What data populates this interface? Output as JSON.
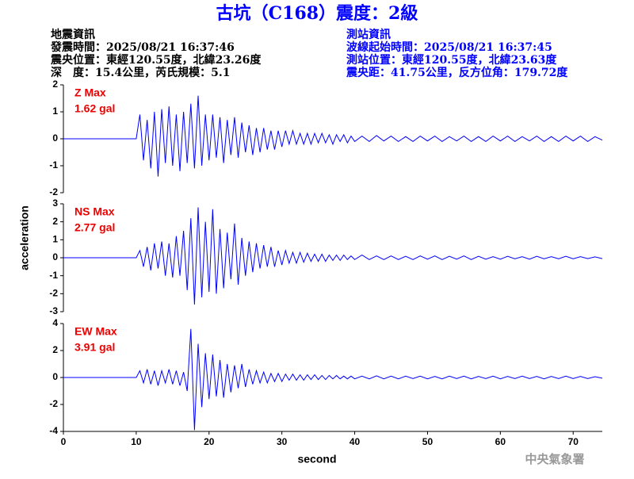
{
  "header": {
    "title": "古坑（C168）震度：2級",
    "left": [
      "地震資訊",
      "發震時間：2025/08/21 16:37:46",
      "震央位置：東經120.55度，北緯23.26度",
      "深　度：15.4公里，芮氏規模：5.1"
    ],
    "right": [
      "測站資訊",
      "波線起始時間：2025/08/21 16:37:45",
      "測站位置：東經120.55度，北緯23.63度",
      "震央距：41.75公里，反方位角：179.72度"
    ]
  },
  "x_label": "second",
  "y_label": "acceleration",
  "footer": "中央氣象署",
  "chart_data": [
    {
      "type": "line",
      "label": "Z Max",
      "peak": "1.62 gal",
      "color": "#0000ff",
      "label_color": "#ee0000",
      "xlim": [
        0,
        74
      ],
      "ylim": [
        -2,
        2
      ],
      "yticks": [
        -2,
        -1,
        0,
        1,
        2
      ],
      "x": [
        0,
        10,
        10.5,
        11,
        11.5,
        12,
        12.5,
        13,
        13.5,
        14,
        14.5,
        15,
        15.5,
        16,
        16.5,
        17,
        17.5,
        18,
        18.5,
        19,
        19.5,
        20,
        20.5,
        21,
        21.5,
        22,
        22.5,
        23,
        23.5,
        24,
        24.5,
        25,
        25.5,
        26,
        26.5,
        27,
        27.5,
        28,
        28.5,
        29,
        29.5,
        30,
        30.5,
        31,
        31.5,
        32,
        32.5,
        33,
        33.5,
        34,
        34.5,
        35,
        35.5,
        36,
        36.5,
        37,
        37.5,
        38,
        38.5,
        39,
        39.5,
        40,
        41,
        42,
        43,
        44,
        45,
        46,
        47,
        48,
        49,
        50,
        51,
        52,
        53,
        54,
        55,
        56,
        57,
        58,
        59,
        60,
        61,
        62,
        63,
        64,
        65,
        66,
        67,
        68,
        69,
        70,
        71,
        72,
        73,
        74
      ],
      "values": [
        0,
        0,
        0.9,
        -0.8,
        0.7,
        -1.1,
        1.0,
        -1.4,
        1.1,
        -0.9,
        1.2,
        -1.0,
        0.9,
        -1.2,
        1.0,
        -0.9,
        1.3,
        -1.1,
        1.6,
        -1.0,
        0.9,
        -0.8,
        0.9,
        -0.7,
        0.8,
        -0.9,
        0.7,
        -0.6,
        0.8,
        -0.7,
        0.6,
        -0.5,
        0.5,
        -0.6,
        0.4,
        -0.5,
        0.4,
        -0.4,
        0.3,
        -0.4,
        0.3,
        -0.3,
        0.3,
        -0.2,
        0.3,
        -0.2,
        0.2,
        -0.2,
        0.2,
        -0.2,
        0.2,
        -0.15,
        0.2,
        -0.15,
        0.15,
        -0.2,
        0.15,
        -0.1,
        0.15,
        -0.15,
        0.1,
        -0.1,
        0.1,
        -0.1,
        0.12,
        -0.08,
        0.1,
        -0.1,
        0.08,
        -0.1,
        0.1,
        -0.08,
        0.1,
        -0.1,
        0.08,
        -0.08,
        0.1,
        -0.1,
        0.08,
        -0.1,
        0.1,
        -0.08,
        0.1,
        -0.1,
        0.08,
        -0.08,
        0.1,
        -0.1,
        0.08,
        -0.1,
        0.1,
        -0.08,
        0.1,
        -0.1,
        0.08,
        -0.05
      ]
    },
    {
      "type": "line",
      "label": "NS Max",
      "peak": "2.77 gal",
      "color": "#0000ff",
      "label_color": "#ee0000",
      "xlim": [
        0,
        74
      ],
      "ylim": [
        -3,
        3
      ],
      "yticks": [
        -3,
        -2,
        -1,
        0,
        1,
        2,
        3
      ],
      "x": [
        0,
        10,
        10.5,
        11,
        11.5,
        12,
        12.5,
        13,
        13.5,
        14,
        14.5,
        15,
        15.5,
        16,
        16.5,
        17,
        17.5,
        18,
        18.5,
        19,
        19.5,
        20,
        20.5,
        21,
        21.5,
        22,
        22.5,
        23,
        23.5,
        24,
        24.5,
        25,
        25.5,
        26,
        26.5,
        27,
        27.5,
        28,
        28.5,
        29,
        29.5,
        30,
        30.5,
        31,
        31.5,
        32,
        32.5,
        33,
        33.5,
        34,
        34.5,
        35,
        35.5,
        36,
        36.5,
        37,
        37.5,
        38,
        38.5,
        39,
        39.5,
        40,
        41,
        42,
        43,
        44,
        45,
        46,
        47,
        48,
        49,
        50,
        51,
        52,
        53,
        54,
        55,
        56,
        57,
        58,
        59,
        60,
        61,
        62,
        63,
        64,
        65,
        66,
        67,
        68,
        69,
        70,
        71,
        72,
        73,
        74
      ],
      "values": [
        0,
        0,
        0.4,
        -0.5,
        0.6,
        -0.7,
        0.8,
        -0.6,
        0.9,
        -1.0,
        0.8,
        -1.1,
        1.2,
        -1.0,
        1.5,
        -1.8,
        2.2,
        -2.6,
        2.8,
        -2.2,
        2.0,
        -1.9,
        2.7,
        -2.0,
        1.6,
        -1.7,
        1.4,
        -1.2,
        1.9,
        -1.5,
        1.1,
        -1.0,
        0.9,
        -0.8,
        0.8,
        -0.6,
        0.7,
        -0.5,
        0.6,
        -0.5,
        0.4,
        -0.4,
        0.4,
        -0.3,
        0.3,
        -0.3,
        0.3,
        -0.25,
        0.25,
        -0.2,
        0.2,
        -0.2,
        0.2,
        -0.2,
        0.15,
        -0.15,
        0.15,
        -0.15,
        0.15,
        -0.1,
        0.1,
        -0.1,
        0.15,
        -0.1,
        0.1,
        -0.1,
        0.1,
        -0.1,
        0.08,
        -0.1,
        0.1,
        -0.08,
        0.1,
        -0.1,
        0.08,
        -0.08,
        0.1,
        -0.1,
        0.08,
        -0.08,
        0.06,
        -0.08,
        0.08,
        -0.06,
        0.06,
        -0.08,
        0.08,
        -0.06,
        0.06,
        -0.06,
        0.08,
        -0.06,
        0.06,
        -0.05,
        0.05,
        -0.05
      ]
    },
    {
      "type": "line",
      "label": "EW Max",
      "peak": "3.91 gal",
      "color": "#0000ff",
      "label_color": "#ee0000",
      "xlim": [
        0,
        74
      ],
      "ylim": [
        -4,
        4
      ],
      "yticks": [
        -4,
        -2,
        0,
        2,
        4
      ],
      "xticks": [
        0,
        10,
        20,
        30,
        40,
        50,
        60,
        70
      ],
      "x": [
        0,
        10,
        10.5,
        11,
        11.5,
        12,
        12.5,
        13,
        13.5,
        14,
        14.5,
        15,
        15.5,
        16,
        16.5,
        17,
        17.5,
        18,
        18.5,
        19,
        19.5,
        20,
        20.5,
        21,
        21.5,
        22,
        22.5,
        23,
        23.5,
        24,
        24.5,
        25,
        25.5,
        26,
        26.5,
        27,
        27.5,
        28,
        28.5,
        29,
        29.5,
        30,
        30.5,
        31,
        31.5,
        32,
        32.5,
        33,
        33.5,
        34,
        34.5,
        35,
        35.5,
        36,
        36.5,
        37,
        37.5,
        38,
        38.5,
        39,
        39.5,
        40,
        41,
        42,
        43,
        44,
        45,
        46,
        47,
        48,
        49,
        50,
        51,
        52,
        53,
        54,
        55,
        56,
        57,
        58,
        59,
        60,
        61,
        62,
        63,
        64,
        65,
        66,
        67,
        68,
        69,
        70,
        71,
        72,
        73,
        74
      ],
      "values": [
        0,
        0,
        0.5,
        -0.4,
        0.6,
        -0.5,
        0.5,
        -0.6,
        0.5,
        -0.4,
        0.6,
        -0.5,
        0.5,
        -0.6,
        0.4,
        -1.0,
        3.6,
        -3.9,
        2.5,
        -2.2,
        1.8,
        -1.6,
        1.7,
        -1.4,
        1.3,
        -1.5,
        1.0,
        -1.1,
        0.9,
        -0.8,
        1.0,
        -0.7,
        0.6,
        -0.5,
        0.5,
        -0.4,
        0.4,
        -0.4,
        0.3,
        -0.3,
        0.3,
        -0.3,
        0.25,
        -0.2,
        0.25,
        -0.2,
        0.2,
        -0.2,
        0.2,
        -0.15,
        0.2,
        -0.15,
        0.15,
        -0.15,
        0.15,
        -0.1,
        0.15,
        -0.1,
        0.1,
        -0.1,
        0.1,
        -0.1,
        0.1,
        -0.1,
        0.12,
        -0.1,
        0.1,
        -0.1,
        0.1,
        -0.08,
        0.1,
        -0.1,
        0.08,
        -0.1,
        0.1,
        -0.08,
        0.1,
        -0.1,
        0.08,
        -0.08,
        0.1,
        -0.1,
        0.08,
        -0.08,
        0.1,
        -0.08,
        0.08,
        -0.1,
        0.08,
        -0.08,
        0.1,
        -0.08,
        0.08,
        -0.08,
        0.06,
        -0.05
      ]
    }
  ]
}
